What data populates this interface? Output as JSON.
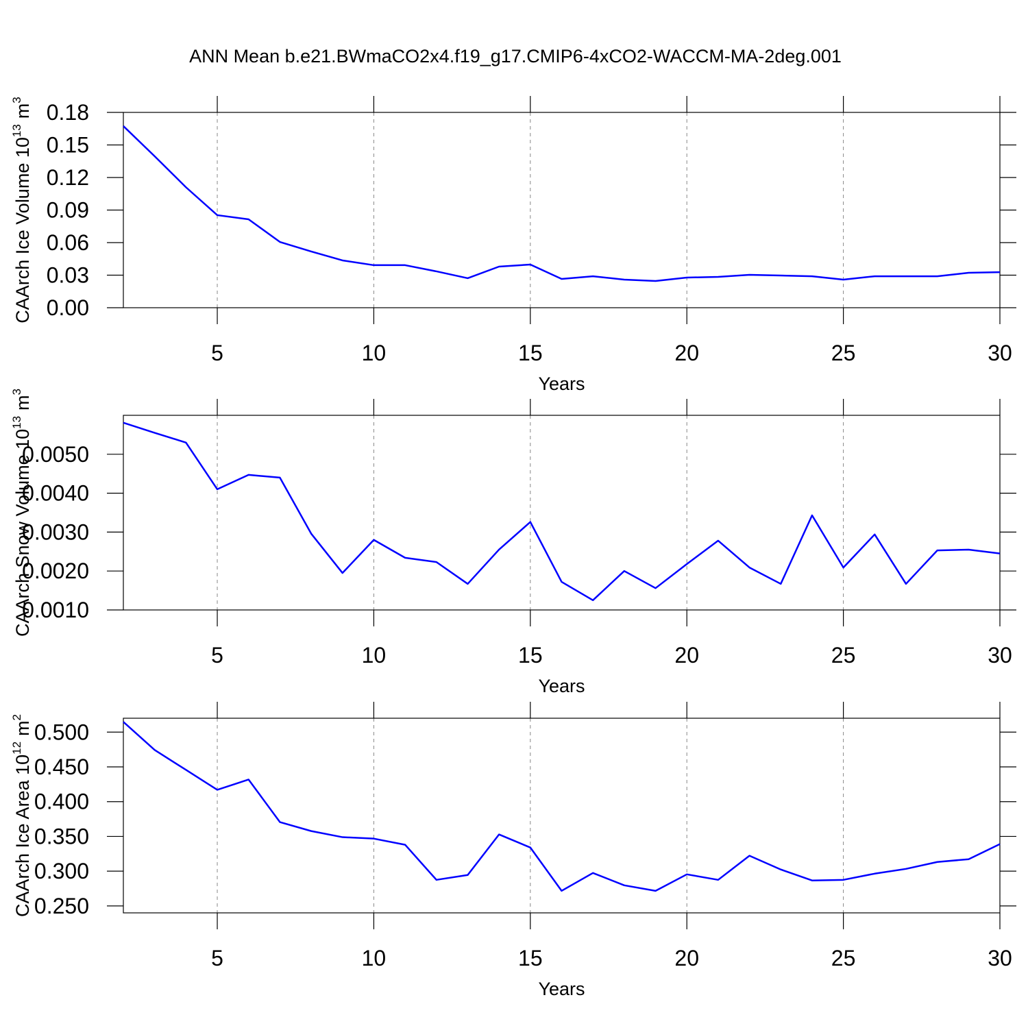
{
  "title": "ANN Mean b.e21.BWmaCO2x4.f19_g17.CMIP6-4xCO2-WACCM-MA-2deg.001",
  "chart_data": [
    {
      "type": "line",
      "xlabel": "Years",
      "ylabel": "CAArch Ice Volume 10",
      "ylabel_exponent": "13",
      "ylabel_unit": "m",
      "ylabel_unit_exponent": "3",
      "x": [
        2,
        3,
        4,
        5,
        6,
        7,
        8,
        9,
        10,
        11,
        12,
        13,
        14,
        15,
        16,
        17,
        18,
        19,
        20,
        21,
        22,
        23,
        24,
        25,
        26,
        27,
        28,
        29,
        30
      ],
      "series": [
        {
          "color": "#0000ff",
          "values": [
            0.1674,
            0.1396,
            0.111,
            0.0853,
            0.0815,
            0.0606,
            0.0518,
            0.0436,
            0.0392,
            0.0392,
            0.0335,
            0.0272,
            0.0379,
            0.0398,
            0.0265,
            0.029,
            0.0259,
            0.0246,
            0.0278,
            0.0284,
            0.0303,
            0.0297,
            0.029,
            0.0259,
            0.029,
            0.029,
            0.029,
            0.0322,
            0.0328
          ]
        }
      ],
      "xlim": [
        2,
        30
      ],
      "xticks": [
        5,
        10,
        15,
        20,
        25,
        30
      ],
      "ylim": [
        0,
        0.18
      ],
      "yticks": [
        {
          "value": 0,
          "label": "0.00"
        },
        0.03,
        0.06,
        0.09,
        0.12,
        0.15,
        0.18
      ],
      "grid": true
    },
    {
      "type": "line",
      "xlabel": "Years",
      "ylabel": "CAArch Snow Volume 10",
      "ylabel_exponent": "13",
      "ylabel_unit": "m",
      "ylabel_unit_exponent": "3",
      "x": [
        2,
        3,
        4,
        5,
        6,
        7,
        8,
        9,
        10,
        11,
        12,
        13,
        14,
        15,
        16,
        17,
        18,
        19,
        20,
        21,
        22,
        23,
        24,
        25,
        26,
        27,
        28,
        29,
        30
      ],
      "series": [
        {
          "color": "#0000ff",
          "values": [
            0.00581,
            0.00555,
            0.0053,
            0.0041,
            0.00447,
            0.0044,
            0.00296,
            0.00195,
            0.0028,
            0.00234,
            0.00223,
            0.00167,
            0.00255,
            0.00326,
            0.00172,
            0.00125,
            0.002,
            0.00156,
            0.00218,
            0.00278,
            0.00209,
            0.00167,
            0.00343,
            0.00209,
            0.00294,
            0.00167,
            0.00253,
            0.00255,
            0.00245
          ]
        }
      ],
      "xlim": [
        2,
        30
      ],
      "xticks": [
        5,
        10,
        15,
        20,
        25,
        30
      ],
      "ylim": [
        0.001,
        0.006
      ],
      "yticks": [
        {
          "value": 0.001,
          "label": "0.0010"
        },
        {
          "value": 0.002,
          "label": "0.0020"
        },
        {
          "value": 0.003,
          "label": "0.0030"
        },
        {
          "value": 0.004,
          "label": "0.0040"
        },
        {
          "value": 0.005,
          "label": "0.0050"
        }
      ],
      "grid": true
    },
    {
      "type": "line",
      "xlabel": "Years",
      "ylabel": "CAArch Ice Area 10",
      "ylabel_exponent": "12",
      "ylabel_unit": "m",
      "ylabel_unit_exponent": "2",
      "x": [
        2,
        3,
        4,
        5,
        6,
        7,
        8,
        9,
        10,
        11,
        12,
        13,
        14,
        15,
        16,
        17,
        18,
        19,
        20,
        21,
        22,
        23,
        24,
        25,
        26,
        27,
        28,
        29,
        30
      ],
      "series": [
        {
          "color": "#0000ff",
          "values": [
            0.5148,
            0.4743,
            0.4457,
            0.417,
            0.4318,
            0.3706,
            0.3577,
            0.3489,
            0.3468,
            0.338,
            0.2875,
            0.2945,
            0.3528,
            0.334,
            0.2717,
            0.2974,
            0.2796,
            0.2717,
            0.2954,
            0.2875,
            0.3222,
            0.3024,
            0.2866,
            0.2875,
            0.2964,
            0.3033,
            0.3132,
            0.3172,
            0.339
          ]
        }
      ],
      "xlim": [
        2,
        30
      ],
      "xticks": [
        5,
        10,
        15,
        20,
        25,
        30
      ],
      "ylim": [
        0.24,
        0.52
      ],
      "yticks": [
        {
          "value": 0.25,
          "label": "0.250"
        },
        {
          "value": 0.3,
          "label": "0.300"
        },
        {
          "value": 0.35,
          "label": "0.350"
        },
        {
          "value": 0.4,
          "label": "0.400"
        },
        {
          "value": 0.45,
          "label": "0.450"
        },
        {
          "value": 0.5,
          "label": "0.500"
        }
      ],
      "grid": true
    }
  ]
}
